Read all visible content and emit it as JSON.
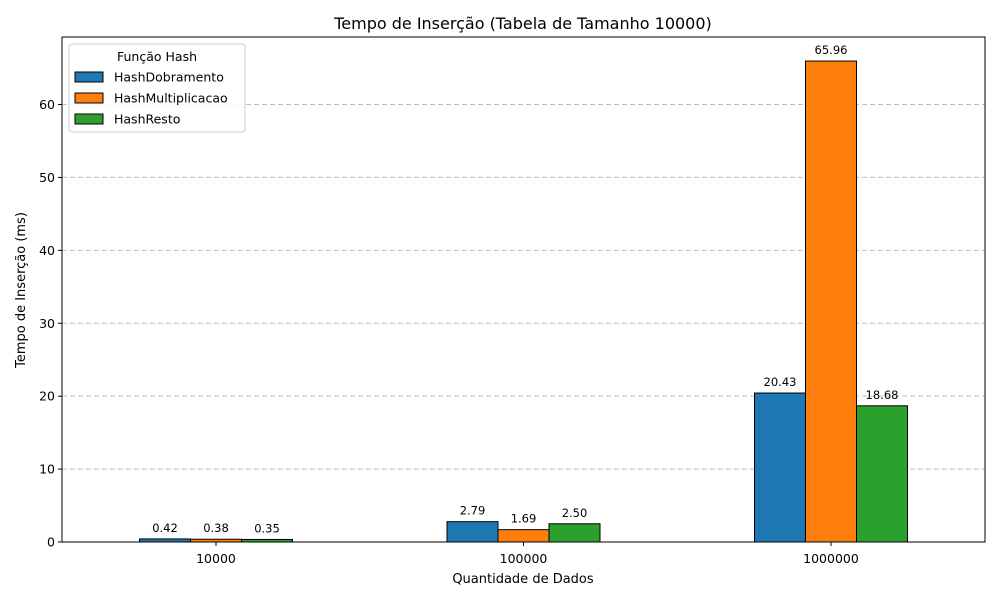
{
  "chart_data": {
    "type": "bar",
    "title": "Tempo de Inserção (Tabela de Tamanho 10000)",
    "xlabel": "Quantidade de Dados",
    "ylabel": "Tempo de Inserção (ms)",
    "categories": [
      "10000",
      "100000",
      "1000000"
    ],
    "ylim": [
      0,
      69.26
    ],
    "yticks": [
      0,
      10,
      20,
      30,
      40,
      50,
      60
    ],
    "grid": "y",
    "legend": {
      "title": "Função Hash",
      "position": "top-left"
    },
    "series": [
      {
        "name": "HashDobramento",
        "color": "#1f77b4",
        "values": [
          0.42,
          2.79,
          20.43
        ],
        "labels": [
          "0.42",
          "2.79",
          "20.43"
        ]
      },
      {
        "name": "HashMultiplicacao",
        "color": "#ff7f0e",
        "values": [
          0.38,
          1.69,
          65.96
        ],
        "labels": [
          "0.38",
          "1.69",
          "65.96"
        ]
      },
      {
        "name": "HashResto",
        "color": "#2ca02c",
        "values": [
          0.35,
          2.5,
          18.68
        ],
        "labels": [
          "0.35",
          "2.50",
          "18.68"
        ]
      }
    ]
  }
}
